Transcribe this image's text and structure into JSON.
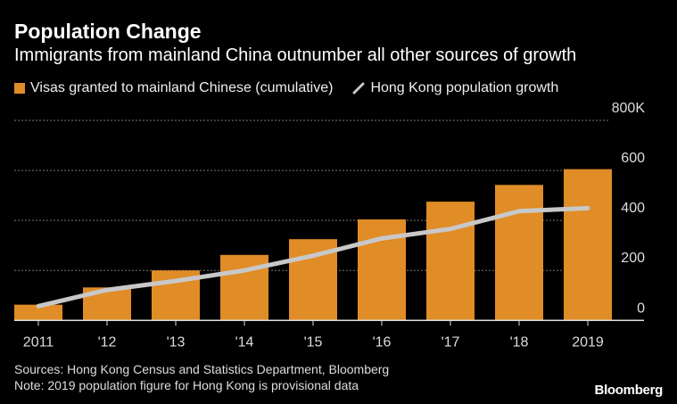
{
  "chart_data": {
    "type": "bar",
    "title": "Population Change",
    "subtitle": "Immigrants from mainland China outnumber all other sources of growth",
    "categories": [
      "2011",
      "'12",
      "'13",
      "'14",
      "'15",
      "'16",
      "'17",
      "'18",
      "2019"
    ],
    "series": [
      {
        "name": "Visas granted to mainland Chinese (cumulative)",
        "type": "bar",
        "color": "#E08C27",
        "values": [
          63,
          132,
          200,
          262,
          325,
          404,
          475,
          542,
          605
        ]
      },
      {
        "name": "Hong Kong population growth",
        "type": "line",
        "color": "#C8C8C8",
        "values": [
          57,
          122,
          158,
          200,
          259,
          328,
          366,
          437,
          449
        ]
      }
    ],
    "y_ticks": [
      "0",
      "200",
      "400",
      "600",
      "800K"
    ],
    "y_tick_values": [
      0,
      200,
      400,
      600,
      800
    ],
    "ylim": [
      0,
      800
    ],
    "y_axis_position": "right",
    "grid": true,
    "legend_position": "top-left"
  },
  "footer": {
    "sources": "Sources: Hong Kong Census and Statistics Department, Bloomberg",
    "note": "Note: 2019 population figure for Hong Kong is provisional data",
    "logo": "Bloomberg"
  }
}
